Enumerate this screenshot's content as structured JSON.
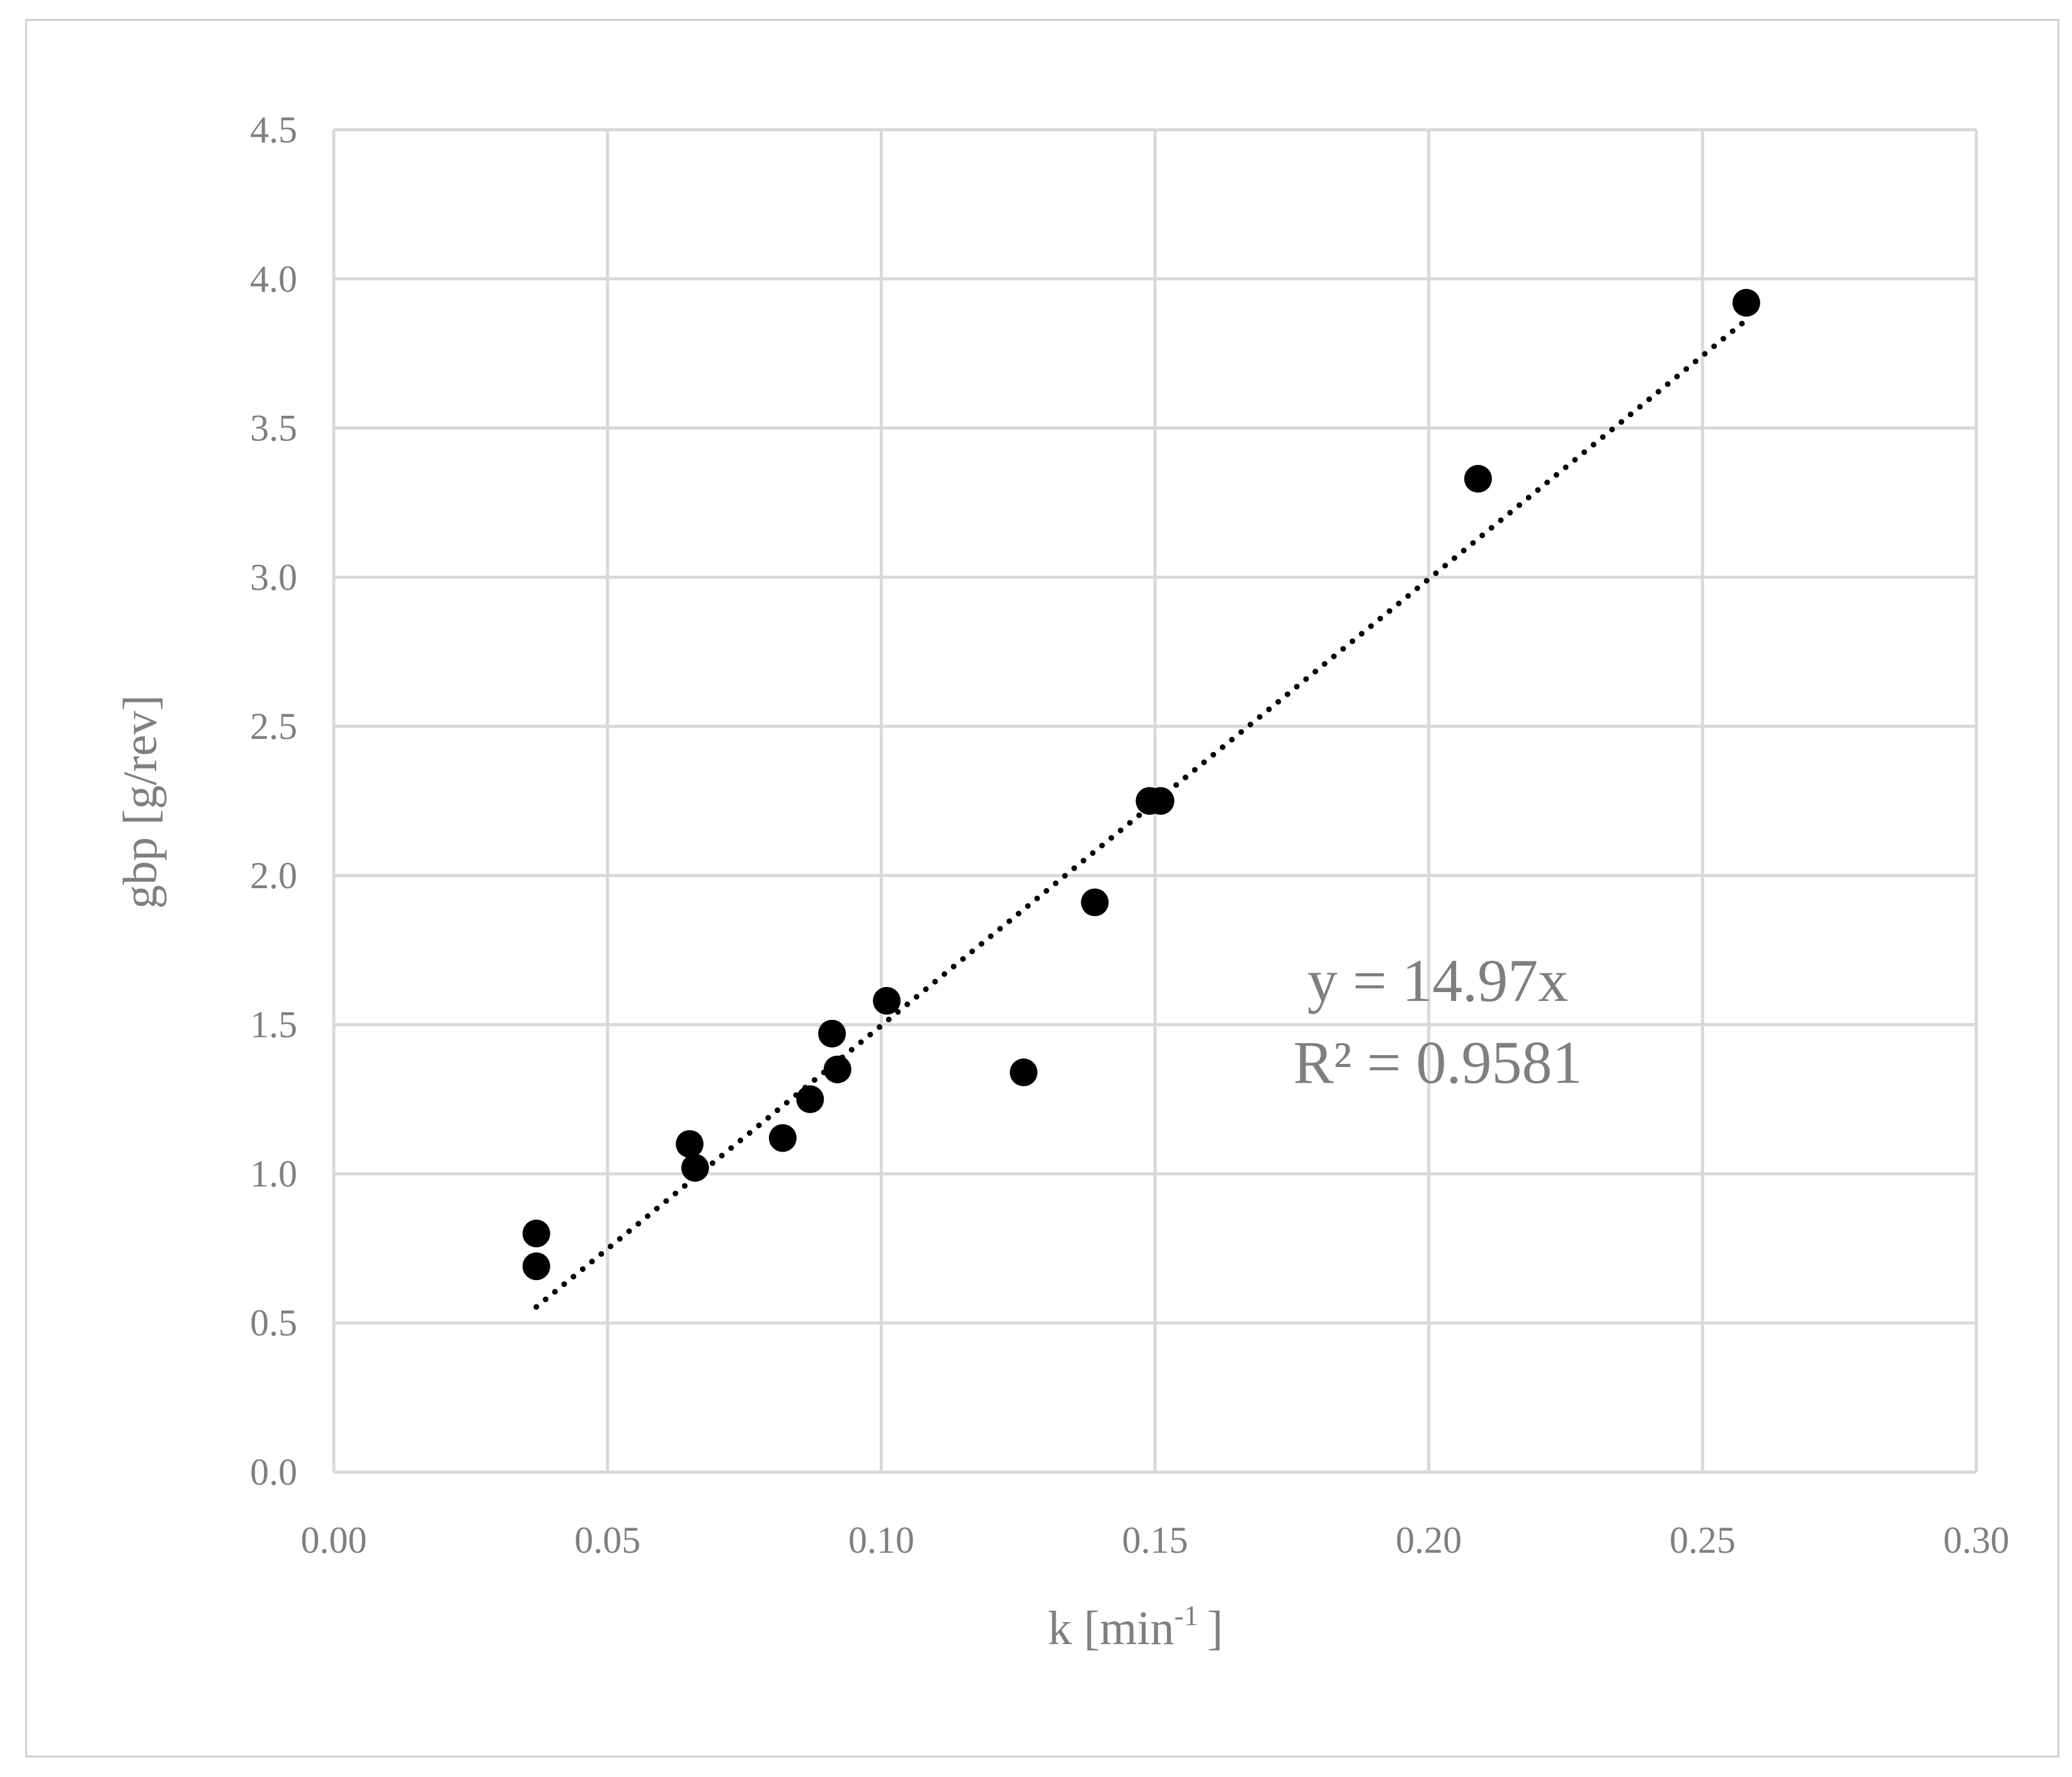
{
  "chart_data": {
    "type": "scatter",
    "title": "",
    "xlabel": "k [min",
    "xlabel_sup": "-1",
    "xlabel_end": "]",
    "ylabel": "gbp [g/rev]",
    "xlim": [
      0,
      0.3
    ],
    "ylim": [
      0,
      4.5
    ],
    "x_ticks": [
      "0.00",
      "0.05",
      "0.10",
      "0.15",
      "0.20",
      "0.25",
      "0.30"
    ],
    "y_ticks": [
      "0.0",
      "0.5",
      "1.0",
      "1.5",
      "2.0",
      "2.5",
      "3.0",
      "3.5",
      "4.0",
      "4.5"
    ],
    "grid": true,
    "legend": "none",
    "series": [
      {
        "marker_color": "#000000",
        "points": [
          {
            "x": 0.037,
            "y": 0.8
          },
          {
            "x": 0.037,
            "y": 0.69
          },
          {
            "x": 0.065,
            "y": 1.1
          },
          {
            "x": 0.066,
            "y": 1.02
          },
          {
            "x": 0.082,
            "y": 1.12
          },
          {
            "x": 0.087,
            "y": 1.25
          },
          {
            "x": 0.091,
            "y": 1.47
          },
          {
            "x": 0.092,
            "y": 1.35
          },
          {
            "x": 0.101,
            "y": 1.58
          },
          {
            "x": 0.126,
            "y": 1.34
          },
          {
            "x": 0.139,
            "y": 1.91
          },
          {
            "x": 0.149,
            "y": 2.25
          },
          {
            "x": 0.151,
            "y": 2.25
          },
          {
            "x": 0.209,
            "y": 3.33
          },
          {
            "x": 0.258,
            "y": 3.92
          }
        ]
      }
    ],
    "trendline": {
      "type": "linear",
      "slope": 14.97,
      "x_range": [
        0.037,
        0.258
      ],
      "style": "dotted",
      "color": "#000000",
      "equation_label": "y = 14.97x",
      "r2_label": "R² = 0.9581"
    }
  }
}
